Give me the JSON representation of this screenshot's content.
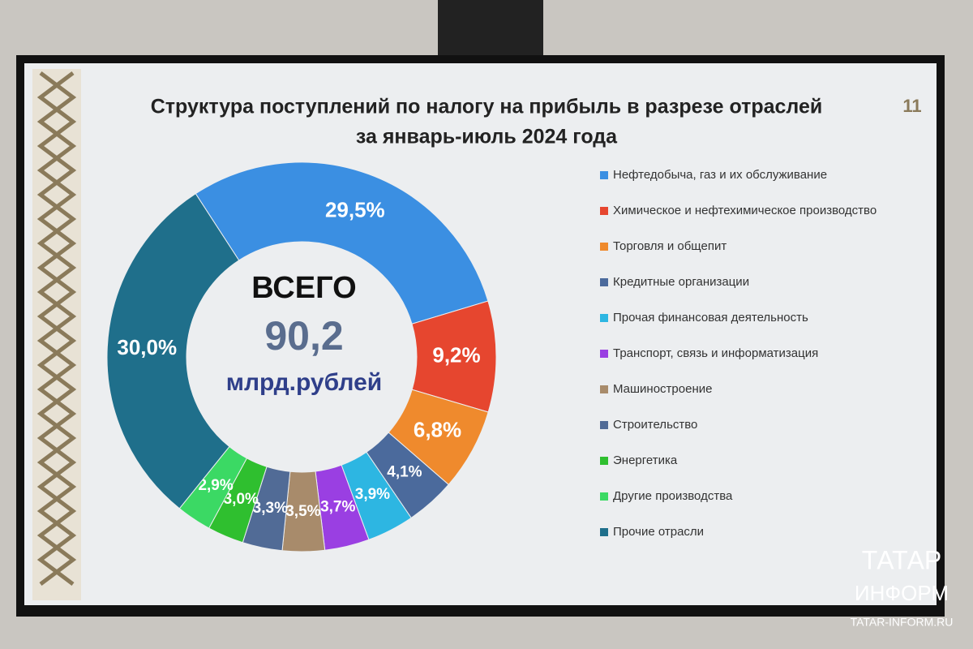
{
  "chart_data": {
    "type": "donut",
    "title": [
      "Структура поступлений по налогу на прибыль в разрезе отраслей",
      "за январь-июль 2024 года"
    ],
    "annotations": [
      "ВСЕГО",
      "90,2",
      "млрд.рублей"
    ],
    "categories": [
      "Нефтедобыча, газ и их обслуживание",
      "Химическое и нефтехимическое производство",
      "Торговля и общепит",
      "Кредитные организации",
      "Прочая финансовая деятельность",
      "Транспорт, связь и информатизация",
      "Машиностроение",
      "Строительство",
      "Энергетика",
      "Другие производства",
      "Прочие отрасли"
    ],
    "values": [
      29.5,
      9.2,
      6.8,
      4.1,
      3.9,
      3.7,
      3.5,
      3.3,
      3.0,
      2.9,
      30.0
    ],
    "value_labels": [
      "29,5%",
      "9,2%",
      "6,8%",
      "4,1%",
      "3,9%",
      "3,7%",
      "3,5%",
      "3,3%",
      "3,0%",
      "2,9%",
      "30,0%"
    ],
    "colors": [
      "#3b8fe2",
      "#e6462f",
      "#ef8a2d",
      "#4b6a9c",
      "#2db6e2",
      "#9a3fe2",
      "#a88b6b",
      "#516b96",
      "#2fbf2f",
      "#3bd964",
      "#1f6f8b"
    ],
    "legend": "right"
  },
  "slide": {
    "page_number": "11"
  },
  "watermark": {
    "lines": [
      "ТАТАР",
      "ИНФОРМ",
      "TATAR-INFORM.RU"
    ]
  }
}
